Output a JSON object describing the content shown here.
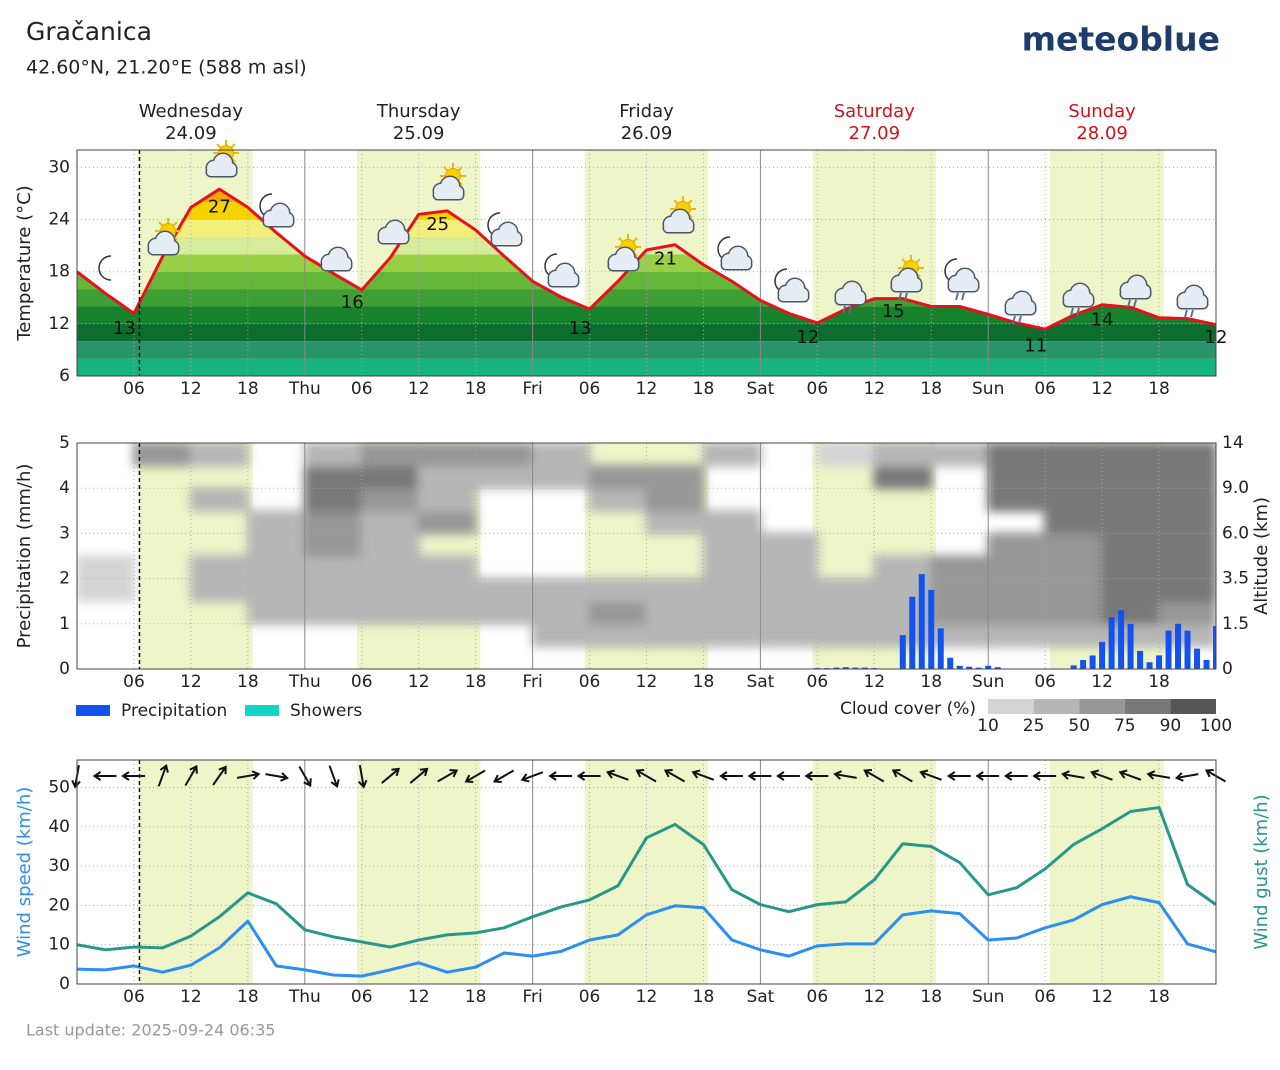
{
  "header": {
    "location": "Gračanica",
    "coordinates": "42.60°N, 21.20°E (588 m asl)",
    "brand": "meteoblue"
  },
  "days": [
    {
      "name": "Wednesday",
      "date": "24.09",
      "color": "#222222"
    },
    {
      "name": "Thursday",
      "date": "25.09",
      "color": "#222222"
    },
    {
      "name": "Friday",
      "date": "26.09",
      "color": "#222222"
    },
    {
      "name": "Saturday",
      "date": "27.09",
      "color": "#d0121b"
    },
    {
      "name": "Sunday",
      "date": "28.09",
      "color": "#d0121b"
    }
  ],
  "now": 6.58,
  "daylight": [
    [
      6.5,
      18.5
    ],
    [
      29.5,
      42.5
    ],
    [
      53.5,
      66.5
    ],
    [
      77.5,
      90.5
    ],
    [
      102.5,
      114.5
    ]
  ],
  "last_update": "Last update: 2025-09-24 06:35",
  "chart_data": [
    {
      "type": "line",
      "ylabel": "Temperature (°C)",
      "color": "#e8101c",
      "x": [
        0,
        3,
        6,
        9,
        12,
        15,
        18,
        21,
        24,
        27,
        30,
        33,
        36,
        39,
        42,
        45,
        48,
        51,
        54,
        57,
        60,
        63,
        66,
        69,
        72,
        75,
        78,
        81,
        84,
        87,
        90,
        93,
        96,
        99,
        102,
        105,
        108,
        111,
        114,
        117,
        120
      ],
      "values": [
        18,
        15.5,
        13.2,
        19.7,
        25.4,
        27.5,
        25.4,
        22.5,
        19.8,
        17.8,
        15.9,
        19.6,
        24.6,
        25,
        22.8,
        19.8,
        16.9,
        15.1,
        13.7,
        16.9,
        20.5,
        21.1,
        18.8,
        16.9,
        14.7,
        13.2,
        12.1,
        13.7,
        14.9,
        14.9,
        14,
        14,
        13.1,
        12.1,
        11.4,
        13,
        14.2,
        13.9,
        12.7,
        12.6,
        11.9
      ],
      "extrema": [
        {
          "x": 5,
          "value": 13
        },
        {
          "x": 15,
          "value": 27
        },
        {
          "x": 29,
          "value": 16
        },
        {
          "x": 38,
          "value": 25
        },
        {
          "x": 53,
          "value": 13
        },
        {
          "x": 62,
          "value": 21
        },
        {
          "x": 77,
          "value": 12
        },
        {
          "x": 86,
          "value": 15
        },
        {
          "x": 101,
          "value": 11
        },
        {
          "x": 108,
          "value": 14
        },
        {
          "x": 120,
          "value": 12
        }
      ],
      "color_levels": [
        6,
        8,
        10,
        12,
        14,
        16,
        18,
        20,
        22,
        24,
        26
      ],
      "level_colors": [
        "#16b37e",
        "#27946a",
        "#0d6d2f",
        "#16832c",
        "#3f9f35",
        "#63b637",
        "#98cf45",
        "#d6ec9a",
        "#f2ef7a",
        "#f5d200",
        "#f2a900"
      ],
      "xlim": [
        0,
        120
      ],
      "xticks": [
        {
          "value": 6,
          "label": "06"
        },
        12,
        18,
        {
          "value": 24,
          "label": "Thu"
        },
        {
          "value": 30,
          "label": "06"
        },
        {
          "value": 36,
          "label": "12"
        },
        {
          "value": 42,
          "label": "18"
        },
        {
          "value": 48,
          "label": "Fri"
        },
        {
          "value": 54,
          "label": "06"
        },
        {
          "value": 60,
          "label": "12"
        },
        {
          "value": 66,
          "label": "18"
        },
        {
          "value": 72,
          "label": "Sat"
        },
        {
          "value": 78,
          "label": "06"
        },
        {
          "value": 84,
          "label": "12"
        },
        {
          "value": 90,
          "label": "18"
        },
        {
          "value": 96,
          "label": "Sun"
        },
        {
          "value": 102,
          "label": "06"
        },
        {
          "value": 108,
          "label": "12"
        },
        {
          "value": 114,
          "label": "18"
        }
      ],
      "ylim": [
        6,
        32
      ],
      "yticks": [
        6,
        12,
        18,
        24,
        30
      ],
      "grid": true
    },
    {
      "type": "bar",
      "ylabel": "Precipitation (mm/h)",
      "y2label": "Altitude (km)",
      "x": [
        78,
        79,
        80,
        81,
        82,
        83,
        84,
        87,
        88,
        89,
        90,
        91,
        92,
        93,
        94,
        95,
        96,
        97,
        105,
        106,
        107,
        108,
        109,
        110,
        111,
        112,
        113,
        114,
        115,
        116,
        117,
        118,
        119,
        120
      ],
      "series": [
        {
          "name": "Precipitation",
          "color": "#1452f0",
          "values": [
            0.02,
            0.02,
            0.03,
            0.04,
            0.03,
            0.03,
            0.02,
            0.75,
            1.6,
            2.1,
            1.75,
            0.9,
            0.25,
            0.07,
            0.05,
            0.03,
            0.07,
            0.04,
            0.08,
            0.2,
            0.3,
            0.6,
            1.15,
            1.3,
            1.0,
            0.4,
            0.15,
            0.3,
            0.85,
            1.0,
            0.85,
            0.45,
            0.2,
            0.95
          ]
        },
        {
          "name": "Showers",
          "color": "#10d6c6",
          "values": [
            0,
            0,
            0,
            0,
            0,
            0,
            0,
            0,
            0,
            0,
            0,
            0,
            0,
            0,
            0,
            0,
            0,
            0,
            0,
            0,
            0,
            0,
            0,
            0,
            0,
            0,
            0,
            0,
            0,
            0,
            0,
            0,
            0,
            0
          ]
        }
      ],
      "cloud_cover": {
        "title": "Cloud cover (%)",
        "bins": [
          10,
          25,
          50,
          75,
          90,
          100
        ],
        "colors": [
          "#d4d4d4",
          "#b6b6b6",
          "#979797",
          "#787878",
          "#565656"
        ],
        "time_edges": [
          0,
          6,
          12,
          18,
          24,
          30,
          36,
          42,
          48,
          54,
          60,
          66,
          72,
          78,
          84,
          90,
          96,
          102,
          108,
          114,
          120
        ],
        "altitude_edges": [
          0,
          0.75,
          1.5,
          2.5,
          3.5,
          4.75,
          6,
          7.5,
          9,
          11.5,
          14
        ],
        "values": [
          [
            0,
            0,
            0,
            0,
            0,
            0,
            0,
            0,
            0,
            0,
            0,
            0,
            0,
            0,
            0,
            0,
            0,
            0,
            0,
            0
          ],
          [
            0,
            0,
            0,
            0,
            0,
            0,
            0,
            0,
            40,
            45,
            40,
            30,
            35,
            40,
            40,
            30,
            30,
            30,
            40,
            40
          ],
          [
            0,
            0,
            0,
            25,
            40,
            35,
            40,
            25,
            45,
            50,
            40,
            30,
            30,
            40,
            45,
            50,
            55,
            65,
            75,
            70
          ],
          [
            15,
            0,
            25,
            40,
            45,
            40,
            40,
            30,
            40,
            40,
            30,
            25,
            25,
            25,
            40,
            55,
            60,
            70,
            88,
            88
          ],
          [
            15,
            0,
            25,
            40,
            45,
            35,
            30,
            0,
            0,
            0,
            0,
            30,
            40,
            0,
            25,
            50,
            60,
            70,
            88,
            88
          ],
          [
            0,
            0,
            0,
            35,
            50,
            45,
            0,
            0,
            0,
            0,
            0,
            25,
            35,
            0,
            0,
            0,
            55,
            70,
            88,
            88
          ],
          [
            0,
            0,
            0,
            25,
            50,
            45,
            55,
            0,
            0,
            0,
            25,
            40,
            0,
            0,
            0,
            0,
            0,
            80,
            85,
            88
          ],
          [
            0,
            0,
            25,
            0,
            80,
            50,
            30,
            0,
            0,
            30,
            60,
            0,
            0,
            0,
            0,
            0,
            85,
            85,
            85,
            85
          ],
          [
            0,
            0,
            0,
            0,
            85,
            75,
            30,
            30,
            25,
            50,
            60,
            0,
            0,
            0,
            80,
            0,
            85,
            85,
            85,
            85
          ],
          [
            0,
            50,
            25,
            0,
            40,
            70,
            60,
            70,
            25,
            0,
            0,
            25,
            0,
            15,
            30,
            25,
            80,
            80,
            80,
            75
          ]
        ]
      },
      "xlim": [
        0,
        120
      ],
      "xticks": [
        {
          "value": 6,
          "label": "06"
        },
        12,
        18,
        {
          "value": 24,
          "label": "Thu"
        },
        {
          "value": 30,
          "label": "06"
        },
        {
          "value": 36,
          "label": "12"
        },
        {
          "value": 42,
          "label": "18"
        },
        {
          "value": 48,
          "label": "Fri"
        },
        {
          "value": 54,
          "label": "06"
        },
        {
          "value": 60,
          "label": "12"
        },
        {
          "value": 66,
          "label": "18"
        },
        {
          "value": 72,
          "label": "Sat"
        },
        {
          "value": 78,
          "label": "06"
        },
        {
          "value": 84,
          "label": "12"
        },
        {
          "value": 90,
          "label": "18"
        },
        {
          "value": 96,
          "label": "Sun"
        },
        {
          "value": 102,
          "label": "06"
        },
        {
          "value": 108,
          "label": "12"
        },
        {
          "value": 114,
          "label": "18"
        }
      ],
      "ylim": [
        0,
        5
      ],
      "yticks": [
        0,
        1,
        2,
        3,
        4,
        5
      ],
      "y2lim": [
        0,
        14
      ],
      "y2ticks": [
        0,
        1.5,
        3.5,
        {
          "value": 6,
          "label": "6.0"
        },
        {
          "value": 9,
          "label": "9.0"
        },
        14
      ],
      "grid": true
    },
    {
      "type": "line",
      "ylabel": "Wind speed (km/h)",
      "y2label": "Wind gust (km/h)",
      "x": [
        0,
        3,
        6,
        9,
        12,
        15,
        18,
        21,
        24,
        27,
        30,
        33,
        36,
        39,
        42,
        45,
        48,
        51,
        54,
        57,
        60,
        63,
        66,
        69,
        72,
        75,
        78,
        81,
        84,
        87,
        90,
        93,
        96,
        99,
        102,
        105,
        108,
        111,
        114,
        117,
        120
      ],
      "series": [
        {
          "color": "#2b8ef0",
          "values": [
            3.8,
            3.6,
            4.6,
            3.0,
            4.8,
            9.2,
            16,
            4.6,
            3.6,
            2.3,
            2.0,
            3.6,
            5.4,
            3.0,
            4.3,
            7.9,
            7.1,
            8.3,
            11.2,
            12.5,
            17.6,
            19.9,
            19.4,
            11.2,
            8.7,
            7.1,
            9.7,
            10.2,
            10.2,
            17.6,
            18.6,
            17.9,
            11.2,
            11.7,
            14.3,
            16.3,
            20.2,
            22.2,
            20.7,
            10.2,
            8.2
          ]
        },
        {
          "color": "#27978a",
          "values": [
            10,
            8.7,
            9.4,
            9.2,
            12.2,
            17.1,
            23.2,
            20.4,
            13.8,
            12,
            10.7,
            9.4,
            11.2,
            12.5,
            13,
            14.3,
            17.1,
            19.6,
            21.4,
            25,
            37.2,
            40.6,
            35.5,
            24,
            20.2,
            18.4,
            20.2,
            20.9,
            26.5,
            35.7,
            35,
            30.9,
            22.7,
            24.5,
            29.3,
            35.5,
            39.5,
            43.9,
            44.9,
            25.3,
            20.2
          ]
        }
      ],
      "wind_direction": [
        10,
        90,
        90,
        200,
        210,
        215,
        260,
        280,
        330,
        340,
        350,
        230,
        230,
        240,
        60,
        60,
        70,
        90,
        90,
        110,
        120,
        120,
        110,
        90,
        90,
        90,
        90,
        100,
        120,
        120,
        110,
        90,
        90,
        90,
        90,
        100,
        110,
        110,
        100,
        80,
        120
      ],
      "xlim": [
        0,
        120
      ],
      "xticks": [
        {
          "value": 6,
          "label": "06"
        },
        12,
        18,
        {
          "value": 24,
          "label": "Thu"
        },
        {
          "value": 30,
          "label": "06"
        },
        {
          "value": 36,
          "label": "12"
        },
        {
          "value": 42,
          "label": "18"
        },
        {
          "value": 48,
          "label": "Fri"
        },
        {
          "value": 54,
          "label": "06"
        },
        {
          "value": 60,
          "label": "12"
        },
        {
          "value": 66,
          "label": "18"
        },
        {
          "value": 72,
          "label": "Sat"
        },
        {
          "value": 78,
          "label": "06"
        },
        {
          "value": 84,
          "label": "12"
        },
        {
          "value": 90,
          "label": "18"
        },
        {
          "value": 96,
          "label": "Sun"
        },
        {
          "value": 102,
          "label": "06"
        },
        {
          "value": 108,
          "label": "12"
        },
        {
          "value": 114,
          "label": "18"
        }
      ],
      "ylim": [
        0,
        57
      ],
      "yticks": [
        0,
        10,
        20,
        30,
        40,
        50
      ],
      "grid": true
    }
  ]
}
